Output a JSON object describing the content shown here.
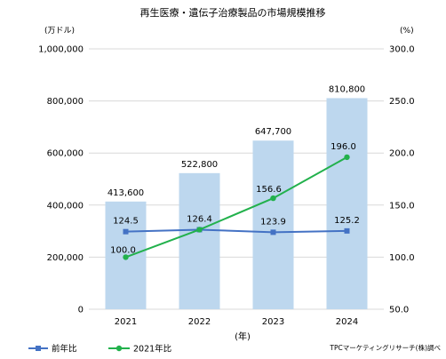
{
  "chart_data": {
    "type": "bar",
    "title": "再生医療・遺伝子治療製品の市場規模推移",
    "left_unit": "(万ドル)",
    "right_unit": "(%)",
    "xlabel": "(年)",
    "categories": [
      "2021",
      "2022",
      "2023",
      "2024"
    ],
    "bar_series": {
      "name": "",
      "values": [
        413600,
        522800,
        647700,
        810800
      ],
      "labels": [
        "413,600",
        "522,800",
        "647,700",
        "810,800"
      ],
      "color": "#BDD7EE"
    },
    "line_series": [
      {
        "name": "前年比",
        "values": [
          124.5,
          126.4,
          123.9,
          125.2
        ],
        "labels": [
          "124.5",
          "126.4",
          "123.9",
          "125.2"
        ],
        "color": "#4472C4",
        "marker": "square"
      },
      {
        "name": "2021年比",
        "values": [
          100.0,
          null,
          156.6,
          196.0
        ],
        "labels": [
          "100.0",
          "",
          "156.6",
          "196.0"
        ],
        "color": "#22B14C",
        "marker": "circle",
        "note": "2022 point estimated at crossing with 前年比 line"
      }
    ],
    "left_axis": {
      "min": 0,
      "max": 1000000,
      "step": 200000,
      "tick_labels": [
        "0",
        "200,000",
        "400,000",
        "600,000",
        "800,000",
        "1,000,000"
      ]
    },
    "right_axis": {
      "min": 50,
      "max": 300,
      "step": 50,
      "tick_labels": [
        "50.0",
        "100.0",
        "150.0",
        "200.0",
        "250.0",
        "300.0"
      ]
    },
    "grid": true,
    "legend_position": "bottom-left",
    "source": "TPCマーケティングリサーチ(株)調べ"
  }
}
